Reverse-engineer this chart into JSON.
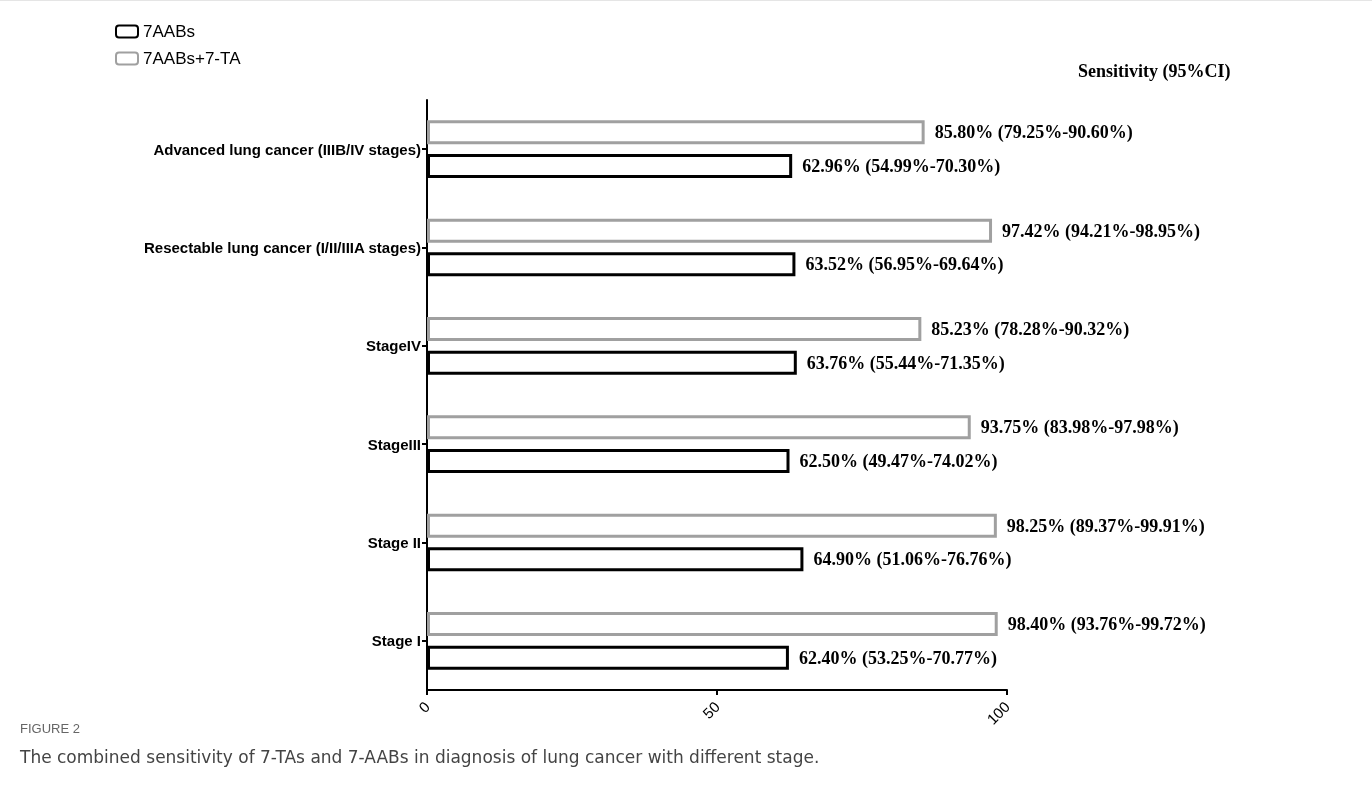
{
  "chart_data": {
    "type": "bar",
    "orientation": "horizontal",
    "categories": [
      "Advanced lung cancer (IIIB/IV stages)",
      "Resectable lung cancer (I/II/IIIA stages)",
      "StageIV",
      "StageIII",
      "Stage II",
      "Stage I"
    ],
    "series": [
      {
        "name": "7AABs",
        "color": "#000000",
        "values": [
          62.96,
          63.52,
          63.76,
          62.5,
          64.9,
          62.4
        ],
        "value_labels": [
          "62.96% (54.99%-70.30%)",
          "63.52% (56.95%-69.64%)",
          "63.76% (55.44%-71.35%)",
          "62.50% (49.47%-74.02%)",
          "64.90% (51.06%-76.76%)",
          "62.40% (53.25%-70.77%)"
        ]
      },
      {
        "name": "7AABs+7-TA",
        "color": "#a0a0a0",
        "values": [
          85.8,
          97.42,
          85.23,
          93.75,
          98.25,
          98.4
        ],
        "value_labels": [
          "85.80% (79.25%-90.60%)",
          "97.42% (94.21%-98.95%)",
          "85.23% (78.28%-90.32%)",
          "93.75% (83.98%-97.98%)",
          "98.25% (89.37%-99.91%)",
          "98.40% (93.76%-99.72%)"
        ]
      }
    ],
    "xlim": [
      0,
      100
    ],
    "xticks": [
      0,
      50,
      100
    ],
    "grid": false,
    "legend": "top left",
    "annotations": [
      "Sensitivity (95%CI)",
      "FIGURE 2",
      "The combined sensitivity of 7-TAs and 7-AABs in diagnosis of lung cancer with different stage."
    ]
  }
}
